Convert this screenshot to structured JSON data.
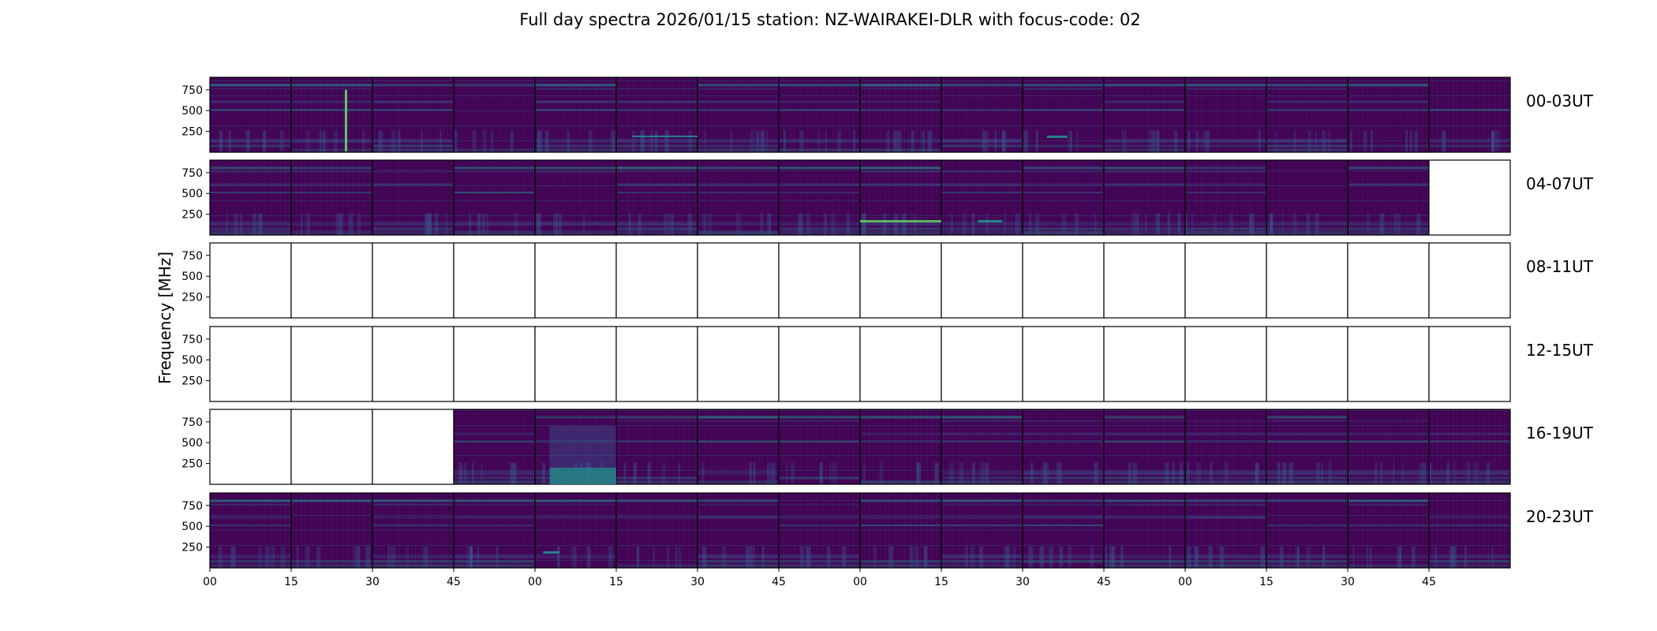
{
  "figure": {
    "title": "Full day spectra 2026/01/15 station: NZ-WAIRAKEI-DLR with focus-code: 02",
    "ylabel": "Frequency [MHz]"
  },
  "chart_data": {
    "type": "heatmap",
    "title": "Full day spectra 2026/01/15 station: NZ-WAIRAKEI-DLR with focus-code: 02",
    "ylabel": "Frequency [MHz]",
    "y_ticks": [
      250,
      500,
      750
    ],
    "ylim": [
      0,
      900
    ],
    "x_ticks": [
      "00",
      "15",
      "30",
      "45",
      "00",
      "15",
      "30",
      "45",
      "00",
      "15",
      "30",
      "45",
      "00",
      "15",
      "30",
      "45"
    ],
    "colormap": "viridis",
    "panels_per_row": 16,
    "rows": [
      {
        "label": "00-03UT",
        "filled": [
          1,
          1,
          1,
          1,
          1,
          1,
          1,
          1,
          1,
          1,
          1,
          1,
          1,
          1,
          1,
          1
        ]
      },
      {
        "label": "04-07UT",
        "filled": [
          1,
          1,
          1,
          1,
          1,
          1,
          1,
          1,
          1,
          1,
          1,
          1,
          1,
          1,
          1,
          0
        ]
      },
      {
        "label": "08-11UT",
        "filled": [
          0,
          0,
          0,
          0,
          0,
          0,
          0,
          0,
          0,
          0,
          0,
          0,
          0,
          0,
          0,
          0
        ]
      },
      {
        "label": "12-15UT",
        "filled": [
          0,
          0,
          0,
          0,
          0,
          0,
          0,
          0,
          0,
          0,
          0,
          0,
          0,
          0,
          0,
          0
        ]
      },
      {
        "label": "16-19UT",
        "filled": [
          0,
          0,
          0,
          1,
          1,
          1,
          1,
          1,
          1,
          1,
          1,
          1,
          1,
          1,
          1,
          1
        ]
      },
      {
        "label": "20-23UT",
        "filled": [
          1,
          1,
          1,
          1,
          1,
          1,
          1,
          1,
          1,
          1,
          1,
          1,
          1,
          1,
          1,
          1
        ]
      }
    ],
    "grid": false
  },
  "colors": {
    "background": "#440154",
    "mid": "#3b528b",
    "teal": "#21918c",
    "green": "#5ec962",
    "yellow": "#fde725",
    "empty_panel": "#ffffff",
    "axis": "#000000"
  }
}
